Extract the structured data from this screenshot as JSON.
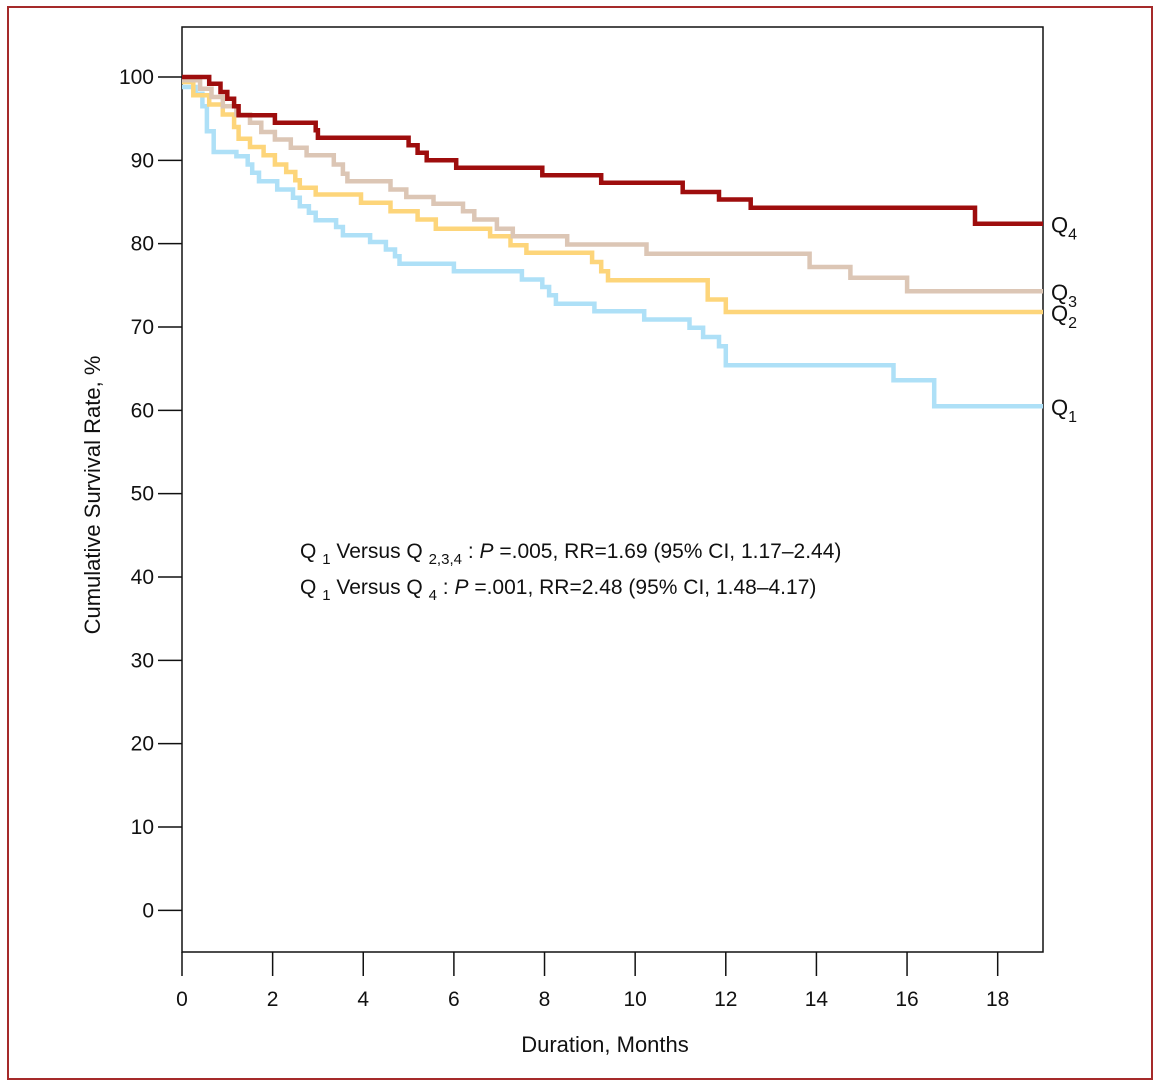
{
  "chart_data": {
    "type": "line",
    "step": true,
    "xlabel": "Duration, Months",
    "ylabel": "Cumulative Survival Rate, %",
    "xlim": [
      0,
      19
    ],
    "ylim": [
      -5,
      106
    ],
    "xticks": [
      0,
      2,
      4,
      6,
      8,
      10,
      12,
      14,
      16,
      18
    ],
    "yticks": [
      0,
      10,
      20,
      30,
      40,
      50,
      60,
      70,
      80,
      90,
      100
    ],
    "series": [
      {
        "label_main": "Q",
        "label_sub": "1",
        "color": "#aee0f7",
        "points": [
          [
            0,
            98.8
          ],
          [
            0.3,
            98
          ],
          [
            0.45,
            96.5
          ],
          [
            0.55,
            93.5
          ],
          [
            0.7,
            91
          ],
          [
            1.2,
            90.5
          ],
          [
            1.45,
            89.5
          ],
          [
            1.55,
            88.5
          ],
          [
            1.7,
            87.5
          ],
          [
            2.1,
            86.5
          ],
          [
            2.45,
            85.5
          ],
          [
            2.6,
            84.5
          ],
          [
            2.8,
            83.7
          ],
          [
            2.95,
            82.8
          ],
          [
            3.4,
            82
          ],
          [
            3.55,
            81
          ],
          [
            4.15,
            80.2
          ],
          [
            4.5,
            79.3
          ],
          [
            4.7,
            78.5
          ],
          [
            4.8,
            77.6
          ],
          [
            6.0,
            76.7
          ],
          [
            7.5,
            75.7
          ],
          [
            7.95,
            74.8
          ],
          [
            8.1,
            73.8
          ],
          [
            8.25,
            72.8
          ],
          [
            9.1,
            71.9
          ],
          [
            10.2,
            70.9
          ],
          [
            11.2,
            69.9
          ],
          [
            11.5,
            68.8
          ],
          [
            11.85,
            67.7
          ],
          [
            12.0,
            65.4
          ],
          [
            15.7,
            63.6
          ],
          [
            16.6,
            60.5
          ],
          [
            19,
            60.5
          ]
        ]
      },
      {
        "label_main": "Q",
        "label_sub": "2",
        "color": "#fdd57a",
        "points": [
          [
            0,
            99.4
          ],
          [
            0.25,
            97.8
          ],
          [
            0.6,
            96.7
          ],
          [
            0.9,
            95.5
          ],
          [
            1.15,
            94
          ],
          [
            1.25,
            92.6
          ],
          [
            1.5,
            91.6
          ],
          [
            1.8,
            90.6
          ],
          [
            2.05,
            89.5
          ],
          [
            2.3,
            88.6
          ],
          [
            2.5,
            87.6
          ],
          [
            2.6,
            86.7
          ],
          [
            2.95,
            85.9
          ],
          [
            3.4,
            85.9
          ],
          [
            3.95,
            84.9
          ],
          [
            4.6,
            83.9
          ],
          [
            5.2,
            82.9
          ],
          [
            5.6,
            81.8
          ],
          [
            6.8,
            80.9
          ],
          [
            7.25,
            79.8
          ],
          [
            7.6,
            78.9
          ],
          [
            9.05,
            77.8
          ],
          [
            9.25,
            76.7
          ],
          [
            9.4,
            75.6
          ],
          [
            11.6,
            73.3
          ],
          [
            12.0,
            71.8
          ],
          [
            19,
            71.8
          ]
        ]
      },
      {
        "label_main": "Q",
        "label_sub": "3",
        "color": "#dcc6b5",
        "points": [
          [
            0,
            99.6
          ],
          [
            0.4,
            98.6
          ],
          [
            0.65,
            97.6
          ],
          [
            0.9,
            96.5
          ],
          [
            1.2,
            95.5
          ],
          [
            1.5,
            94.5
          ],
          [
            1.75,
            93.4
          ],
          [
            2.05,
            92.5
          ],
          [
            2.4,
            91.5
          ],
          [
            2.75,
            90.6
          ],
          [
            3.35,
            89.5
          ],
          [
            3.55,
            88.4
          ],
          [
            3.65,
            87.5
          ],
          [
            4.6,
            86.5
          ],
          [
            4.95,
            85.6
          ],
          [
            5.55,
            84.8
          ],
          [
            6.2,
            83.9
          ],
          [
            6.45,
            82.9
          ],
          [
            6.95,
            81.8
          ],
          [
            7.3,
            80.9
          ],
          [
            8.5,
            79.9
          ],
          [
            10.25,
            78.8
          ],
          [
            13.85,
            77.2
          ],
          [
            14.75,
            75.9
          ],
          [
            16.0,
            74.3
          ],
          [
            19,
            74.3
          ]
        ]
      },
      {
        "label_main": "Q",
        "label_sub": "4",
        "color": "#9e0d0d",
        "points": [
          [
            0,
            100
          ],
          [
            0.6,
            99.2
          ],
          [
            0.85,
            98.2
          ],
          [
            1.0,
            97.4
          ],
          [
            1.15,
            96.5
          ],
          [
            1.25,
            95.4
          ],
          [
            2.05,
            94.5
          ],
          [
            2.95,
            93.6
          ],
          [
            3.0,
            92.7
          ],
          [
            5.0,
            91.8
          ],
          [
            5.2,
            90.9
          ],
          [
            5.4,
            90
          ],
          [
            6.05,
            89.1
          ],
          [
            7.95,
            88.2
          ],
          [
            9.25,
            87.3
          ],
          [
            11.05,
            86.2
          ],
          [
            11.85,
            85.3
          ],
          [
            12.55,
            84.3
          ],
          [
            17.5,
            82.4
          ],
          [
            19,
            82.4
          ]
        ]
      }
    ],
    "annotations": {
      "line1": {
        "q": "Q",
        "q_sub": "1",
        "versus": " Versus Q",
        "versus_sub": "2,3,4",
        "colon": ": ",
        "p_italic": "P",
        "rest": "=.005, RR=1.69 (95% CI, 1.17–2.44)"
      },
      "line2": {
        "q": "Q",
        "q_sub": "1",
        "versus": " Versus Q",
        "versus_sub": "4",
        "colon": ": ",
        "p_italic": "P",
        "rest": "=.001, RR=2.48 (95% CI, 1.48–4.17)"
      }
    }
  }
}
